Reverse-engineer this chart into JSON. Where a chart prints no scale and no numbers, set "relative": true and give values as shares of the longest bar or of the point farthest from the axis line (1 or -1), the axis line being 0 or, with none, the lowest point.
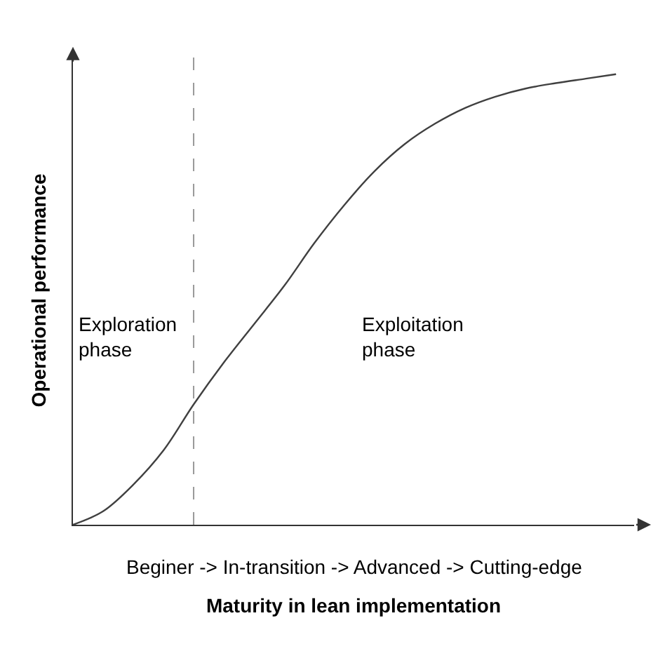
{
  "chart_data": {
    "type": "line",
    "relative": true,
    "xlabel": "Maturity in lean implementation",
    "ylabel": "Operational performance",
    "categories": [
      null,
      null,
      null,
      null,
      null,
      null,
      null,
      null,
      null,
      null,
      null,
      null,
      null,
      null,
      null,
      null,
      null,
      null,
      null
    ],
    "series": [
      {
        "color": "#404040",
        "values": [
          0,
          0.03,
          0.089,
          0.165,
          0.267,
          0.36,
          0.445,
          0.53,
          0.625,
          0.71,
          0.785,
          0.845,
          0.89,
          0.925,
          0.95,
          0.968,
          0.98,
          0.99,
          1
        ]
      }
    ],
    "annotations": [
      "Exploration\nphase",
      "Exploitation\nphase",
      "Beginer -> In-transition -> Advanced -> Cutting-edge"
    ],
    "marker": "none",
    "line_style": "solid",
    "tick_labels": false
  }
}
